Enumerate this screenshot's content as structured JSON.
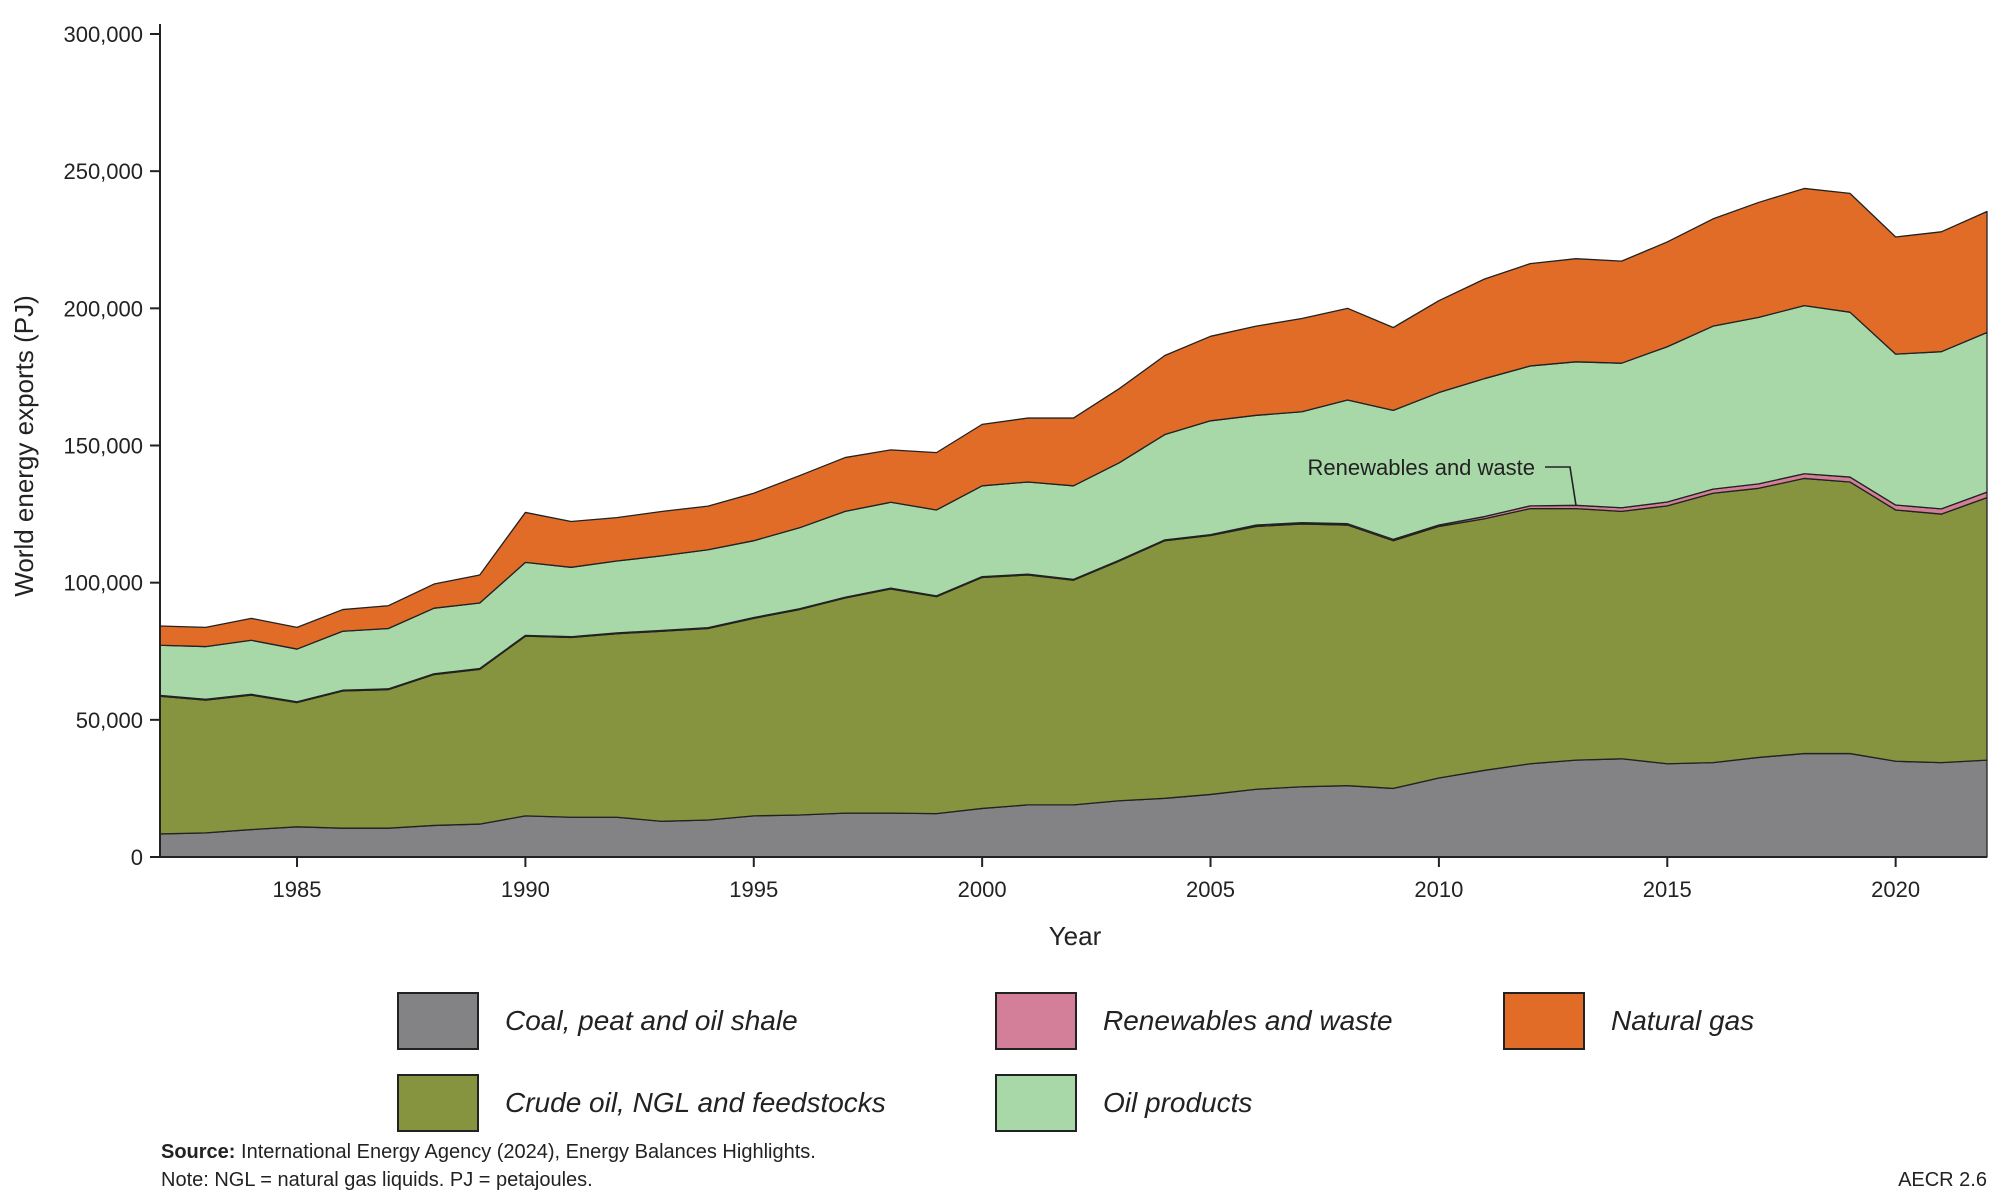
{
  "chart_data": {
    "type": "area",
    "stacked": true,
    "xlabel": "Year",
    "ylabel": "World energy exports (PJ)",
    "xlim": [
      1982,
      2022
    ],
    "ylim": [
      0,
      300000
    ],
    "x_ticks": [
      1985,
      1990,
      1995,
      2000,
      2005,
      2010,
      2015,
      2020
    ],
    "y_ticks": [
      0,
      50000,
      100000,
      150000,
      200000,
      250000,
      300000
    ],
    "y_tick_labels": [
      "0",
      "50,000",
      "100,000",
      "150,000",
      "200,000",
      "250,000",
      "300,000"
    ],
    "grid": false,
    "legend_position": "bottom",
    "x": [
      1982,
      1983,
      1984,
      1985,
      1986,
      1987,
      1988,
      1989,
      1990,
      1991,
      1992,
      1993,
      1994,
      1995,
      1996,
      1997,
      1998,
      1999,
      2000,
      2001,
      2002,
      2003,
      2004,
      2005,
      2006,
      2007,
      2008,
      2009,
      2010,
      2011,
      2012,
      2013,
      2014,
      2015,
      2016,
      2017,
      2018,
      2019,
      2020,
      2021,
      2022
    ],
    "series": [
      {
        "name": "Coal, peat and oil shale",
        "color": "#838385",
        "values": [
          8400,
          8800,
          10000,
          11000,
          10500,
          10500,
          11500,
          12000,
          15000,
          14500,
          14500,
          13000,
          13500,
          15000,
          15300,
          16000,
          16000,
          15800,
          17700,
          19000,
          19000,
          20500,
          21400,
          22800,
          24700,
          25600,
          26000,
          25000,
          28800,
          31600,
          34000,
          35300,
          35800,
          34000,
          34400,
          36300,
          37700,
          37700,
          34900,
          34400,
          35300
        ]
      },
      {
        "name": "Crude oil, NGL and feedstocks",
        "color": "#86933f",
        "values": [
          50200,
          48400,
          49000,
          45300,
          50000,
          50500,
          55000,
          56400,
          65500,
          65500,
          66900,
          69300,
          69800,
          72000,
          74900,
          78400,
          81700,
          79100,
          84200,
          83800,
          81900,
          87400,
          93900,
          94400,
          95800,
          95800,
          95000,
          90300,
          91700,
          91700,
          93000,
          91700,
          90200,
          94000,
          98200,
          98100,
          100300,
          99000,
          91600,
          90600,
          95700
        ]
      },
      {
        "name": "Renewables and waste",
        "color": "#d47f9a",
        "values": [
          300,
          300,
          300,
          300,
          300,
          300,
          300,
          300,
          300,
          300,
          300,
          300,
          300,
          300,
          300,
          300,
          300,
          300,
          300,
          300,
          300,
          300,
          300,
          300,
          500,
          500,
          500,
          500,
          500,
          800,
          1000,
          1200,
          1300,
          1400,
          1500,
          1600,
          1700,
          1800,
          1800,
          1900,
          2000
        ]
      },
      {
        "name": "Oil products",
        "color": "#a8d8a8",
        "values": [
          18300,
          19200,
          19700,
          19200,
          21500,
          22000,
          23900,
          23900,
          26600,
          25300,
          26200,
          27200,
          28400,
          28000,
          29500,
          31300,
          31300,
          31300,
          33100,
          33600,
          34100,
          35500,
          38400,
          41500,
          40000,
          40400,
          45100,
          47000,
          48300,
          50300,
          51000,
          52300,
          52700,
          56600,
          59400,
          60700,
          61300,
          60100,
          55000,
          57300,
          58200
        ]
      },
      {
        "name": "Natural gas",
        "color": "#e06c28",
        "values": [
          7000,
          7000,
          8000,
          7900,
          7900,
          8300,
          8800,
          10200,
          18200,
          16700,
          15800,
          16200,
          15900,
          17300,
          19000,
          19600,
          19100,
          20900,
          22400,
          23300,
          24700,
          27000,
          28800,
          30800,
          32500,
          34000,
          33400,
          30200,
          33500,
          36300,
          37300,
          37600,
          37200,
          38200,
          39100,
          41900,
          42700,
          43300,
          42700,
          43700,
          44100
        ]
      }
    ],
    "annotations": [
      {
        "text": "Renewables and waste",
        "x": 2013
      }
    ]
  },
  "legend": [
    {
      "label": "Coal, peat and oil shale",
      "color": "#838385"
    },
    {
      "label": "Renewables and waste",
      "color": "#d47f9a"
    },
    {
      "label": "Natural gas",
      "color": "#e06c28"
    },
    {
      "label": "Crude oil, NGL and feedstocks",
      "color": "#86933f"
    },
    {
      "label": "Oil products",
      "color": "#a8d8a8"
    }
  ],
  "footer": {
    "source_label": "Source:",
    "source_text": " International Energy Agency (2024), Energy Balances Highlights.",
    "note": "Note: NGL = natural gas liquids. PJ = petajoules.",
    "figure_id": "AECR 2.6"
  }
}
